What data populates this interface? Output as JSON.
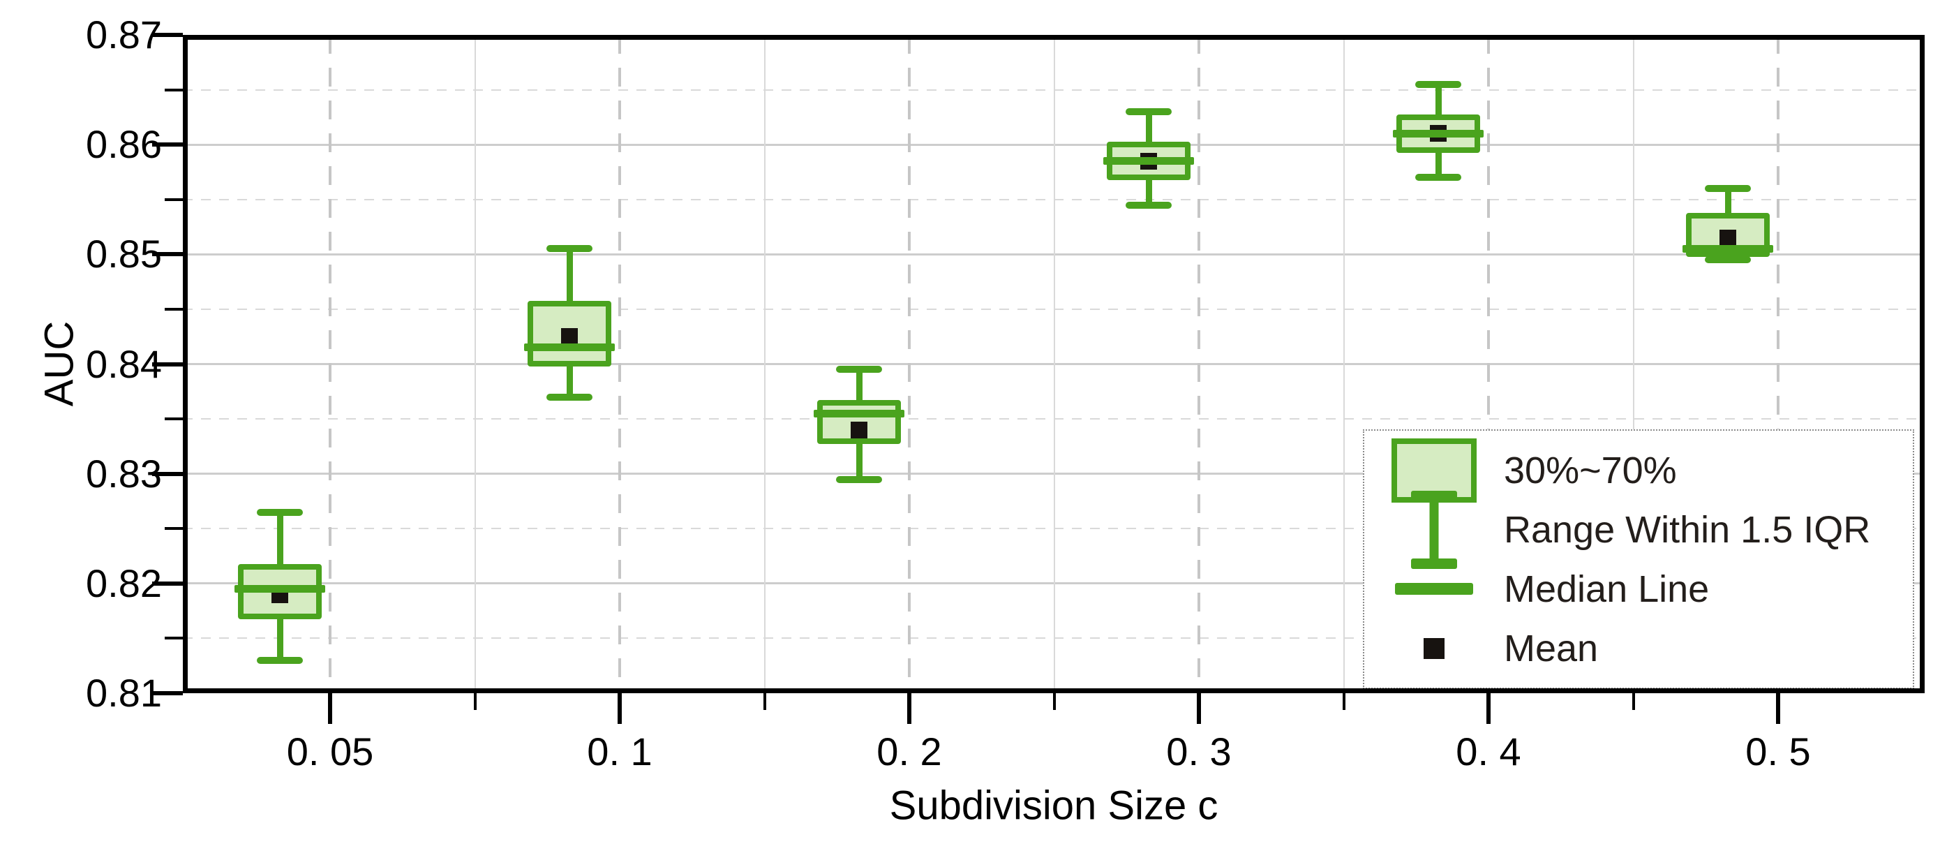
{
  "colors": {
    "green": "#4aa31e",
    "fill": "#d6ecc2",
    "mean": "#171310",
    "grid_major": "#cdcdcd",
    "grid_minor": "#d9d9d9",
    "grid_vdash": "#c6c6c6",
    "frame": "#000000",
    "text": "#000000"
  },
  "legend": {
    "items": [
      {
        "swatch": "box",
        "label": "30%~70%"
      },
      {
        "swatch": "whisker-range",
        "label": "Range Within 1.5 IQR"
      },
      {
        "swatch": "median-line",
        "label": "Median Line"
      },
      {
        "swatch": "mean-square",
        "label": "Mean"
      }
    ]
  },
  "chart_data": {
    "type": "box",
    "title": "",
    "xlabel": "Subdivision Size c",
    "ylabel": "AUC",
    "ylim": [
      0.81,
      0.87
    ],
    "y_major_step": 0.01,
    "y_minor_step": 0.005,
    "y_tick_values": [
      0.87,
      0.86,
      0.85,
      0.84,
      0.83,
      0.82,
      0.81
    ],
    "y_tick_labels": [
      "0.87",
      "0.86",
      "0.85",
      "0.84",
      "0.83",
      "0.82",
      "0.81"
    ],
    "categories": [
      "0.05",
      "0.1",
      "0.2",
      "0.3",
      "0.4",
      "0.5"
    ],
    "x_tick_labels": [
      "0. 05",
      "0. 1",
      "0. 2",
      "0. 3",
      "0. 4",
      "0. 5"
    ],
    "grid": {
      "h_major": "solid",
      "h_minor": "dashed",
      "v_major": "dashed",
      "v_minor": "solid"
    },
    "legend_position": "bottom-right",
    "boxes": [
      {
        "x": "0.05",
        "whisker_low": 0.813,
        "p30": 0.817,
        "median": 0.8195,
        "mean": 0.819,
        "p70": 0.8215,
        "whisker_high": 0.8265
      },
      {
        "x": "0.1",
        "whisker_low": 0.837,
        "p30": 0.84,
        "median": 0.8415,
        "mean": 0.8425,
        "p70": 0.8455,
        "whisker_high": 0.8505
      },
      {
        "x": "0.2",
        "whisker_low": 0.8295,
        "p30": 0.833,
        "median": 0.8355,
        "mean": 0.834,
        "p70": 0.8365,
        "whisker_high": 0.8395
      },
      {
        "x": "0.3",
        "whisker_low": 0.8545,
        "p30": 0.857,
        "median": 0.8585,
        "mean": 0.8585,
        "p70": 0.86,
        "whisker_high": 0.863
      },
      {
        "x": "0.4",
        "whisker_low": 0.857,
        "p30": 0.8595,
        "median": 0.861,
        "mean": 0.861,
        "p70": 0.8625,
        "whisker_high": 0.8655
      },
      {
        "x": "0.5",
        "whisker_low": 0.8495,
        "p30": 0.85,
        "median": 0.8505,
        "mean": 0.8515,
        "p70": 0.8535,
        "whisker_high": 0.856
      }
    ]
  }
}
